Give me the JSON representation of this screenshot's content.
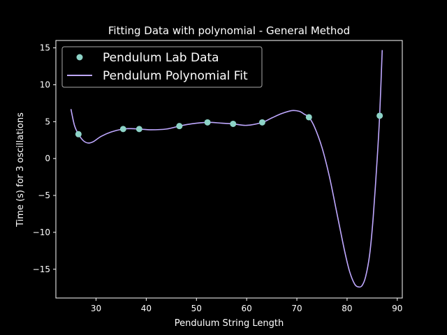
{
  "chart_data": {
    "type": "scatter",
    "title": "Fitting Data with polynomial - General Method",
    "xlabel": "Pendulum String Length",
    "ylabel": "Time (s) for 3 oscillations",
    "xlim": [
      22,
      91
    ],
    "ylim": [
      -18.9,
      16.0
    ],
    "xticks": [
      30,
      40,
      50,
      60,
      70,
      80,
      90
    ],
    "yticks": [
      -15,
      -10,
      -5,
      0,
      5,
      10,
      15
    ],
    "legend_position": "upper-left",
    "grid": false,
    "series": [
      {
        "name": "Pendulum Lab Data",
        "kind": "scatter",
        "color": "#8dd3c7",
        "x": [
          26.5,
          35.4,
          38.6,
          46.6,
          52.2,
          57.3,
          63.1,
          72.4,
          86.5
        ],
        "y": [
          3.3,
          4.0,
          4.0,
          4.4,
          4.9,
          4.7,
          4.9,
          5.6,
          5.8
        ]
      },
      {
        "name": "Pendulum Polynomial Fit",
        "kind": "line",
        "color": "#bfa8ff",
        "x": [
          25.0,
          25.7,
          26.5,
          27.5,
          28.5,
          29.5,
          31.0,
          33.0,
          35.4,
          37.0,
          38.6,
          41.0,
          44.0,
          46.6,
          49.0,
          52.2,
          55.0,
          57.3,
          60.0,
          63.1,
          65.0,
          67.0,
          69.0,
          70.5,
          71.5,
          72.4,
          73.5,
          75.0,
          76.5,
          78.0,
          79.5,
          80.5,
          81.5,
          82.3,
          83.0,
          83.7,
          84.5,
          85.2,
          86.0,
          86.5,
          87.0
        ],
        "y": [
          6.7,
          4.5,
          3.3,
          2.4,
          2.1,
          2.3,
          3.0,
          3.6,
          4.0,
          4.05,
          4.0,
          3.9,
          4.0,
          4.4,
          4.7,
          4.9,
          4.8,
          4.7,
          4.5,
          4.9,
          5.5,
          6.1,
          6.5,
          6.4,
          6.0,
          5.6,
          4.3,
          1.5,
          -2.5,
          -7.5,
          -12.5,
          -15.3,
          -17.0,
          -17.4,
          -17.2,
          -16.0,
          -13.0,
          -8.0,
          0.0,
          6.0,
          14.7
        ]
      }
    ]
  }
}
